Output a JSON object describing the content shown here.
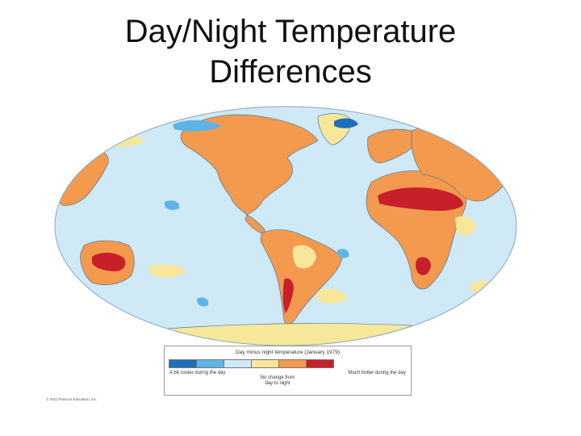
{
  "slide": {
    "title_line1": "Day/Night Temperature",
    "title_line2": "Differences"
  },
  "legend": {
    "title": "Day minus night temperature (January 1979)",
    "left_label": "A bit cooler during the day",
    "right_label": "Much hotter during the day",
    "middle_label_line1": "No change from",
    "middle_label_line2": "day to night",
    "classes": [
      {
        "name": "cooler-strong",
        "color": "#1f6fb8"
      },
      {
        "name": "cooler",
        "color": "#5fb3e6"
      },
      {
        "name": "no-change",
        "color": "#cfe9f7"
      },
      {
        "name": "slightly-warmer",
        "color": "#f6e79a"
      },
      {
        "name": "warmer",
        "color": "#f39a4e"
      },
      {
        "name": "much-hotter",
        "color": "#c8202a"
      }
    ]
  },
  "map": {
    "ocean_color": "#cfe9f7",
    "land_color": "#f39a4e",
    "hot_color": "#c8202a",
    "mild_color": "#f6e79a",
    "cool_color": "#5fb3e6",
    "outline_color": "#2a6aa0"
  },
  "copyright": "© 2011 Pearson Education, Inc."
}
